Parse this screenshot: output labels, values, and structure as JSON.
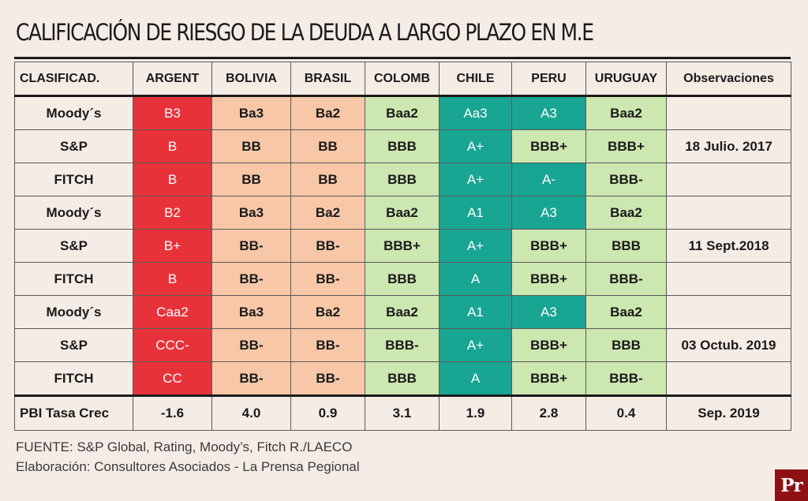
{
  "title": "CALIFICACIÓN DE RIESGO DE LA DEUDA A LARGO PLAZO EN M.E",
  "colors": {
    "background": "#f5ece6",
    "red": "#e8323a",
    "peach": "#f7c7a7",
    "light_green": "#cde7b0",
    "teal": "#18a592"
  },
  "chart_data": {
    "type": "table",
    "title": "CALIFICACIÓN DE RIESGO DE LA DEUDA A LARGO PLAZO EN M.E",
    "columns": [
      "CLASIFICAD.",
      "ARGENT",
      "BOLIVIA",
      "BRASIL",
      "COLOMB",
      "CHILE",
      "PERU",
      "URUGUAY",
      "Observaciones"
    ],
    "rows": [
      {
        "agency": "Moody´s",
        "ratings": [
          "B3",
          "Ba3",
          "Ba2",
          "Baa2",
          "Aa3",
          "A3",
          "Baa2"
        ],
        "colors": [
          "red",
          "peach",
          "peach",
          "light_green",
          "teal",
          "teal",
          "light_green"
        ],
        "obs": ""
      },
      {
        "agency": "S&P",
        "ratings": [
          "B",
          "BB",
          "BB",
          "BBB",
          "A+",
          "BBB+",
          "BBB+"
        ],
        "colors": [
          "red",
          "peach",
          "peach",
          "light_green",
          "teal",
          "light_green",
          "light_green"
        ],
        "obs": "18 Julio. 2017"
      },
      {
        "agency": "FITCH",
        "ratings": [
          "B",
          "BB",
          "BB",
          "BBB",
          "A+",
          "A-",
          "BBB-"
        ],
        "colors": [
          "red",
          "peach",
          "peach",
          "light_green",
          "teal",
          "teal",
          "light_green"
        ],
        "obs": ""
      },
      {
        "agency": "Moody´s",
        "ratings": [
          "B2",
          "Ba3",
          "Ba2",
          "Baa2",
          "A1",
          "A3",
          "Baa2"
        ],
        "colors": [
          "red",
          "peach",
          "peach",
          "light_green",
          "teal",
          "teal",
          "light_green"
        ],
        "obs": ""
      },
      {
        "agency": "S&P",
        "ratings": [
          "B+",
          "BB-",
          "BB-",
          "BBB+",
          "A+",
          "BBB+",
          "BBB"
        ],
        "colors": [
          "red",
          "peach",
          "peach",
          "light_green",
          "teal",
          "light_green",
          "light_green"
        ],
        "obs": "11 Sept.2018"
      },
      {
        "agency": "FITCH",
        "ratings": [
          "B",
          "BB-",
          "BB-",
          "BBB",
          "A",
          "BBB+",
          "BBB-"
        ],
        "colors": [
          "red",
          "peach",
          "peach",
          "light_green",
          "teal",
          "light_green",
          "light_green"
        ],
        "obs": ""
      },
      {
        "agency": "Moody´s",
        "ratings": [
          "Caa2",
          "Ba3",
          "Ba2",
          "Baa2",
          "A1",
          "A3",
          "Baa2"
        ],
        "colors": [
          "red",
          "peach",
          "peach",
          "light_green",
          "teal",
          "teal",
          "light_green"
        ],
        "obs": ""
      },
      {
        "agency": "S&P",
        "ratings": [
          "CCC-",
          "BB-",
          "BB-",
          "BBB-",
          "A+",
          "BBB+",
          "BBB"
        ],
        "colors": [
          "red",
          "peach",
          "peach",
          "light_green",
          "teal",
          "light_green",
          "light_green"
        ],
        "obs": "03 Octub. 2019"
      },
      {
        "agency": "FITCH",
        "ratings": [
          "CC",
          "BB-",
          "BB-",
          "BBB",
          "A",
          "BBB+",
          "BBB-"
        ],
        "colors": [
          "red",
          "peach",
          "peach",
          "light_green",
          "teal",
          "light_green",
          "light_green"
        ],
        "obs": ""
      }
    ],
    "pbi_row": {
      "label": "PBI Tasa Crec",
      "values": [
        "-1.6",
        "4.0",
        "0.9",
        "3.1",
        "1.9",
        "2.8",
        "0.4"
      ],
      "obs": "Sep. 2019"
    }
  },
  "footer": {
    "source": "FUENTE: S&P Global, Rating, Moody’s, Fitch R./LAECO",
    "credit": "Elaboración: Consultores Asociados - La Prensa Pegional"
  },
  "logo": {
    "text": "Pr",
    "icon": "pr-logo-icon"
  }
}
